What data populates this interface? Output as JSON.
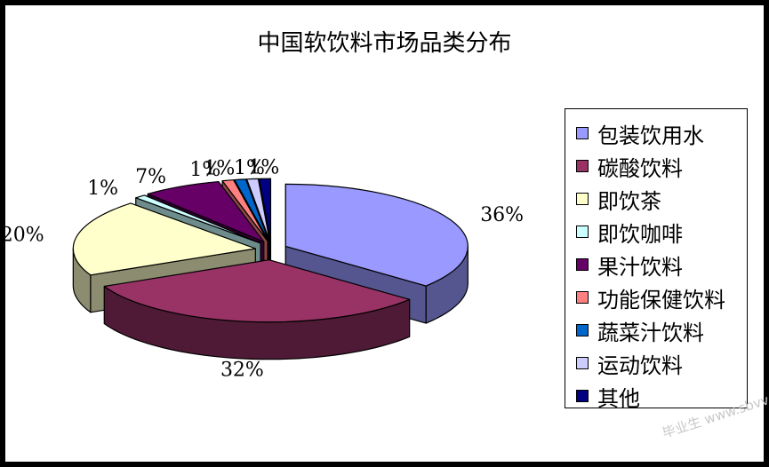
{
  "chart_data": {
    "type": "pie",
    "title": "中国软饮料市场品类分布",
    "legend_position": "right",
    "slices": [
      {
        "label": "包装饮用水",
        "value": 36,
        "value_label": "36%",
        "color": "#9999FF",
        "side_color": "#55558F"
      },
      {
        "label": "碳酸饮料",
        "value": 32,
        "value_label": "32%",
        "color": "#993366",
        "side_color": "#4F1A35"
      },
      {
        "label": "即饮茶",
        "value": 20,
        "value_label": "20%",
        "color": "#FFFFCC",
        "side_color": "#8C8C70"
      },
      {
        "label": "即饮咖啡",
        "value": 1,
        "value_label": "1%",
        "color": "#CCFFFF",
        "side_color": "#6F8C8C"
      },
      {
        "label": "果汁饮料",
        "value": 7,
        "value_label": "7%",
        "color": "#660066",
        "side_color": "#330033"
      },
      {
        "label": "功能保健饮料",
        "value": 1,
        "value_label": "1%",
        "color": "#FF8080",
        "side_color": "#8C4646"
      },
      {
        "label": "蔬菜汁饮料",
        "value": 1,
        "value_label": "1%",
        "color": "#0066CC",
        "side_color": "#003770"
      },
      {
        "label": "运动饮料",
        "value": 1,
        "value_label": "1%",
        "color": "#CCCCFF",
        "side_color": "#70708C"
      },
      {
        "label": "其他",
        "value": 1,
        "value_label": "1%",
        "color": "#000080",
        "side_color": "#000045"
      }
    ]
  },
  "watermark": "毕业生 www.sbvv.com"
}
